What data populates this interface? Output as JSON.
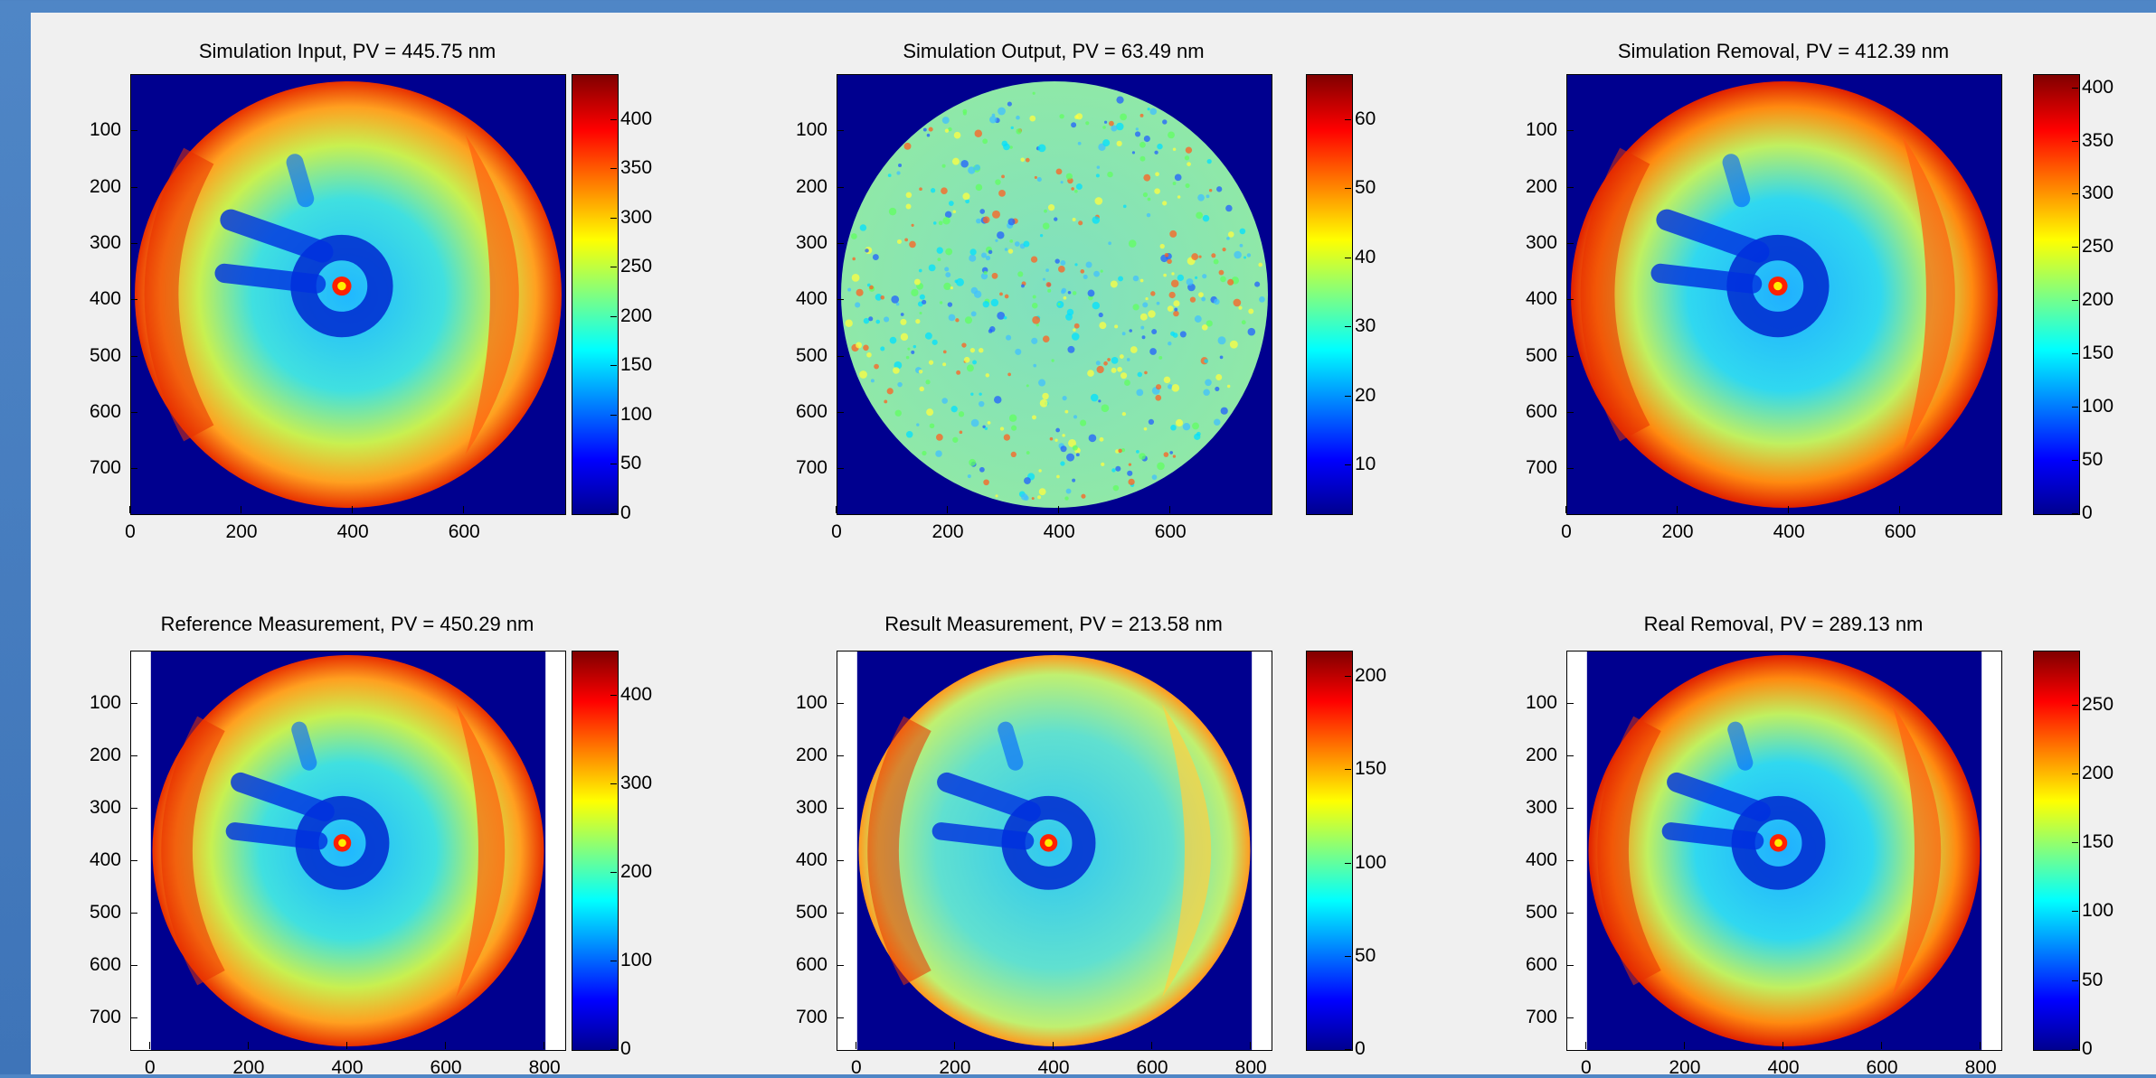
{
  "colors": {
    "figure_bg": "#f0f0f0",
    "window_bg": "#4f86c6",
    "plot_bg": "#00008f"
  },
  "chart_data": [
    {
      "type": "heatmap",
      "title": "Simulation Input, PV = 445.75 nm",
      "style": "input",
      "x_ticks": [
        "0",
        "200",
        "400",
        "600"
      ],
      "x_tick_values": [
        0,
        200,
        400,
        600
      ],
      "y_ticks": [
        "100",
        "200",
        "300",
        "400",
        "500",
        "600",
        "700"
      ],
      "y_tick_values": [
        100,
        200,
        300,
        400,
        500,
        600,
        700
      ],
      "xlim": [
        0,
        780
      ],
      "ylim": [
        0,
        780
      ],
      "aperture": "full",
      "colorbar": {
        "ticks": [
          "400",
          "350",
          "300",
          "250",
          "200",
          "150",
          "100",
          "50",
          "0"
        ],
        "tick_values": [
          400,
          350,
          300,
          250,
          200,
          150,
          100,
          50,
          0
        ],
        "range": [
          0,
          445.75
        ]
      }
    },
    {
      "type": "heatmap",
      "title": "Simulation Output, PV = 63.49 nm",
      "style": "noise",
      "x_ticks": [
        "0",
        "200",
        "400",
        "600"
      ],
      "x_tick_values": [
        0,
        200,
        400,
        600
      ],
      "y_ticks": [
        "100",
        "200",
        "300",
        "400",
        "500",
        "600",
        "700"
      ],
      "y_tick_values": [
        100,
        200,
        300,
        400,
        500,
        600,
        700
      ],
      "xlim": [
        0,
        780
      ],
      "ylim": [
        0,
        780
      ],
      "aperture": "full",
      "colorbar": {
        "ticks": [
          "60",
          "50",
          "40",
          "30",
          "20",
          "10"
        ],
        "tick_values": [
          60,
          50,
          40,
          30,
          20,
          10
        ],
        "range": [
          3,
          66.5
        ]
      }
    },
    {
      "type": "heatmap",
      "title": "Simulation Removal, PV = 412.39 nm",
      "style": "smooth",
      "x_ticks": [
        "0",
        "200",
        "400",
        "600"
      ],
      "x_tick_values": [
        0,
        200,
        400,
        600
      ],
      "y_ticks": [
        "100",
        "200",
        "300",
        "400",
        "500",
        "600",
        "700"
      ],
      "y_tick_values": [
        100,
        200,
        300,
        400,
        500,
        600,
        700
      ],
      "xlim": [
        0,
        780
      ],
      "ylim": [
        0,
        780
      ],
      "aperture": "full",
      "colorbar": {
        "ticks": [
          "400",
          "350",
          "300",
          "250",
          "200",
          "150",
          "100",
          "50",
          "0"
        ],
        "tick_values": [
          400,
          350,
          300,
          250,
          200,
          150,
          100,
          50,
          0
        ],
        "range": [
          0,
          412.39
        ]
      }
    },
    {
      "type": "heatmap",
      "title": "Reference Measurement, PV = 450.29 nm",
      "style": "input",
      "x_ticks": [
        "0",
        "200",
        "400",
        "600",
        "800"
      ],
      "x_tick_values": [
        0,
        200,
        400,
        600,
        800
      ],
      "y_ticks": [
        "100",
        "200",
        "300",
        "400",
        "500",
        "600",
        "700"
      ],
      "y_tick_values": [
        100,
        200,
        300,
        400,
        500,
        600,
        700
      ],
      "xlim": [
        -40,
        840
      ],
      "ylim": [
        0,
        760
      ],
      "aperture": "padded",
      "colorbar": {
        "ticks": [
          "400",
          "300",
          "200",
          "100",
          "0"
        ],
        "tick_values": [
          400,
          300,
          200,
          100,
          0
        ],
        "range": [
          0,
          450.29
        ]
      }
    },
    {
      "type": "heatmap",
      "title": "Result Measurement, PV = 213.58 nm",
      "style": "result",
      "x_ticks": [
        "0",
        "200",
        "400",
        "600",
        "800"
      ],
      "x_tick_values": [
        0,
        200,
        400,
        600,
        800
      ],
      "y_ticks": [
        "100",
        "200",
        "300",
        "400",
        "500",
        "600",
        "700"
      ],
      "y_tick_values": [
        100,
        200,
        300,
        400,
        500,
        600,
        700
      ],
      "xlim": [
        -40,
        840
      ],
      "ylim": [
        0,
        760
      ],
      "aperture": "padded",
      "colorbar": {
        "ticks": [
          "200",
          "150",
          "100",
          "50",
          "0"
        ],
        "tick_values": [
          200,
          150,
          100,
          50,
          0
        ],
        "range": [
          0,
          213.58
        ]
      }
    },
    {
      "type": "heatmap",
      "title": "Real Removal, PV = 289.13 nm",
      "style": "smooth",
      "x_ticks": [
        "0",
        "200",
        "400",
        "600",
        "800"
      ],
      "x_tick_values": [
        0,
        200,
        400,
        600,
        800
      ],
      "y_ticks": [
        "100",
        "200",
        "300",
        "400",
        "500",
        "600",
        "700"
      ],
      "y_tick_values": [
        100,
        200,
        300,
        400,
        500,
        600,
        700
      ],
      "xlim": [
        -40,
        840
      ],
      "ylim": [
        0,
        760
      ],
      "aperture": "padded",
      "colorbar": {
        "ticks": [
          "250",
          "200",
          "150",
          "100",
          "50",
          "0"
        ],
        "tick_values": [
          250,
          200,
          150,
          100,
          50,
          0
        ],
        "range": [
          0,
          289.13
        ]
      }
    }
  ]
}
